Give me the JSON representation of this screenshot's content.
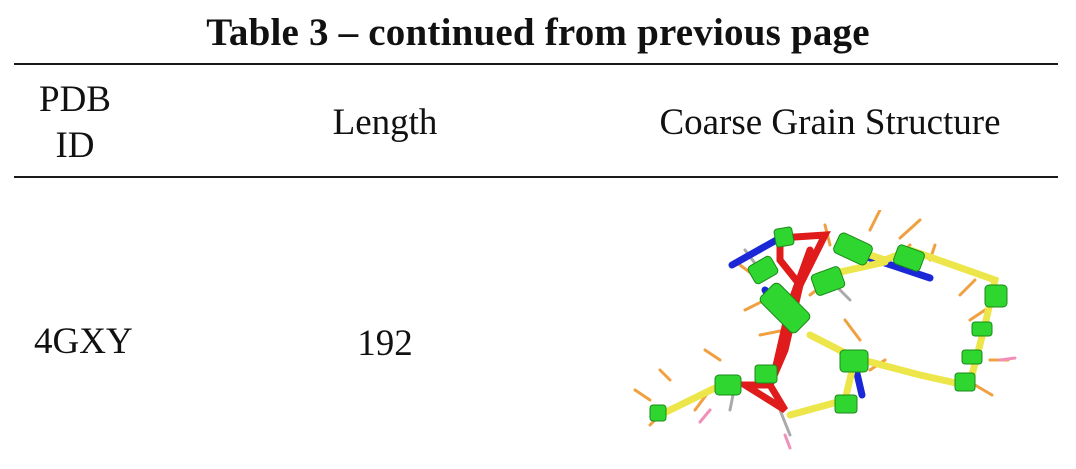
{
  "table": {
    "caption": "Table 3 – continued from previous page",
    "headers": {
      "pdb_id": "PDB ID",
      "length": "Length",
      "structure": "Coarse Grain Structure"
    },
    "rows": [
      {
        "pdb_id": "4GXY",
        "length": "192",
        "structure_image": "coarse-grain-structure-image"
      }
    ]
  },
  "colors": {
    "red_strand": "#e01b1b",
    "yellow_strand": "#ece64a",
    "blue_strand": "#1a28d6",
    "green_beads": "#2fd62f",
    "orange_sticks": "#f0a040"
  }
}
